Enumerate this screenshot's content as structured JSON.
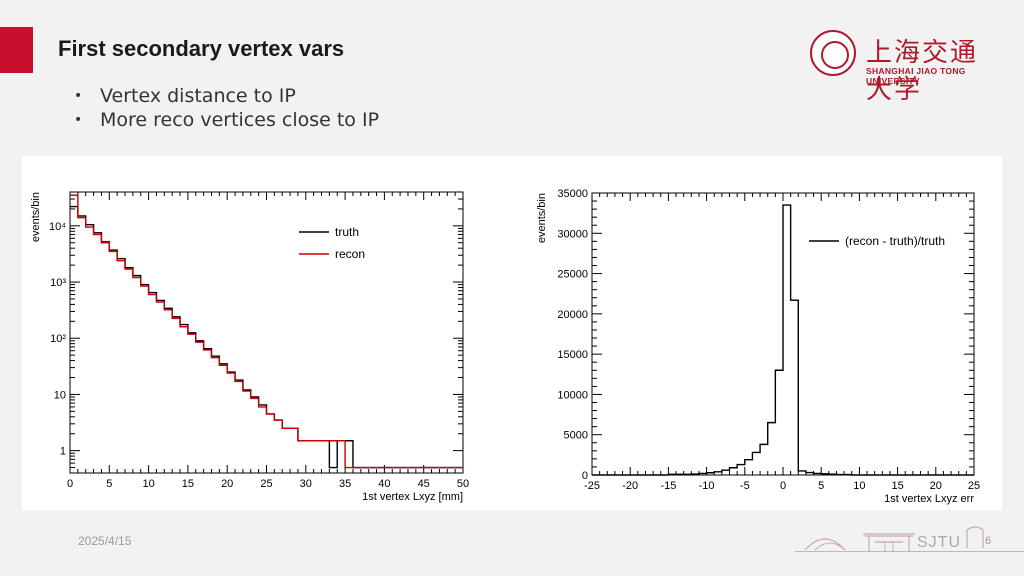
{
  "slide": {
    "title": "First secondary vertex vars",
    "bullets": [
      "Vertex distance to IP",
      "More reco vertices close to IP"
    ],
    "date": "2025/4/15",
    "page_number": "6",
    "footer_logo_text": "SJTU"
  },
  "logo": {
    "chinese_name": "上海交通大学",
    "english_name": "SHANGHAI JIAO TONG UNIVERSITY"
  },
  "colors": {
    "accent": "#c8102e",
    "truth": "#000000",
    "recon": "#cc0000"
  },
  "chart_data": [
    {
      "type": "line",
      "style": "step-histogram",
      "xlabel": "1st vertex Lxyz [mm]",
      "ylabel": "events/bin",
      "xlim": [
        0,
        50
      ],
      "ylim": [
        0.4,
        40000
      ],
      "yscale": "log",
      "x_ticks": [
        0,
        5,
        10,
        15,
        20,
        25,
        30,
        35,
        40,
        45,
        50
      ],
      "y_ticks": [
        {
          "value": 1,
          "label": "1"
        },
        {
          "value": 10,
          "label": "10"
        },
        {
          "value": 100,
          "label": "10²"
        },
        {
          "value": 1000,
          "label": "10³"
        },
        {
          "value": 10000,
          "label": "10⁴"
        }
      ],
      "legend_position": "top-right",
      "bin_edges_start": 0,
      "bin_width": 1,
      "series": [
        {
          "name": "truth",
          "color": "#000000",
          "values": [
            22000,
            15000,
            10500,
            7500,
            5200,
            3700,
            2600,
            1800,
            1300,
            900,
            650,
            470,
            340,
            240,
            175,
            125,
            90,
            65,
            48,
            35,
            25,
            18,
            12,
            9,
            6.5,
            4.5,
            3.5,
            2.5,
            2.5,
            1.5,
            1.5,
            1.5,
            1.5,
            0.5,
            1.5,
            1.5,
            0.5,
            0.5,
            0.5,
            0.5,
            0.5,
            0.5,
            0.5,
            0.5,
            0.5,
            0.5,
            0.5,
            0.5,
            0.5,
            0.5
          ]
        },
        {
          "name": "recon",
          "color": "#cc0000",
          "values": [
            35000,
            14000,
            9500,
            7000,
            5000,
            3500,
            2400,
            1700,
            1200,
            850,
            600,
            440,
            320,
            225,
            160,
            118,
            85,
            62,
            45,
            33,
            24,
            17,
            11.5,
            8.5,
            6,
            4.5,
            3.5,
            2.5,
            2.5,
            1.5,
            1.5,
            1.5,
            1.5,
            1.5,
            1.5,
            0.5,
            0.5,
            0.5,
            0.5,
            0.5,
            0.5,
            0.5,
            0.5,
            0.5,
            0.5,
            0.5,
            0.5,
            0.5,
            0.5,
            0.5
          ]
        }
      ]
    },
    {
      "type": "line",
      "style": "step-histogram",
      "xlabel": "1st vertex Lxyz err",
      "ylabel": "events/bin",
      "xlim": [
        -25,
        25
      ],
      "ylim": [
        0,
        35000
      ],
      "x_ticks": [
        -25,
        -20,
        -15,
        -10,
        -5,
        0,
        5,
        10,
        15,
        20,
        25
      ],
      "y_ticks": [
        0,
        5000,
        10000,
        15000,
        20000,
        25000,
        30000,
        35000
      ],
      "legend_position": "top-right",
      "bin_edges_start": -25,
      "bin_width": 1,
      "series": [
        {
          "name": "(recon - truth)/truth",
          "color": "#000000",
          "values": [
            0,
            0,
            0,
            0,
            0,
            0,
            0,
            0,
            0,
            0,
            80,
            80,
            80,
            120,
            200,
            280,
            400,
            600,
            900,
            1300,
            1900,
            2800,
            3800,
            6500,
            13000,
            33500,
            21700,
            500,
            300,
            200,
            150,
            100,
            50,
            50,
            0,
            0,
            0,
            0,
            0,
            0,
            0,
            0,
            0,
            0,
            0,
            0,
            0,
            0,
            0,
            0
          ]
        }
      ]
    }
  ]
}
